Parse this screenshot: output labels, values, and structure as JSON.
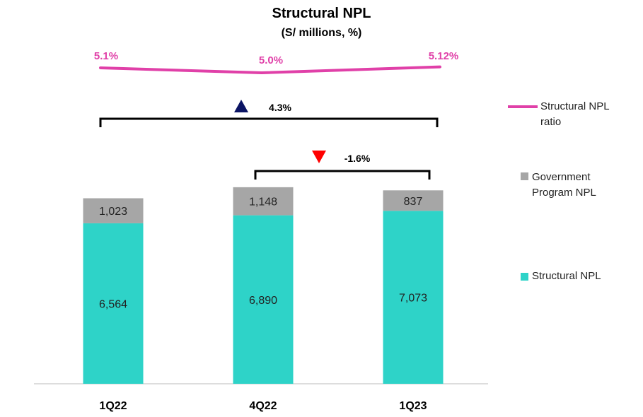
{
  "chart_data": {
    "type": "bar",
    "title": "Structural NPL",
    "subtitle": "(S/ millions, %)",
    "categories": [
      "1Q22",
      "4Q22",
      "1Q23"
    ],
    "series": [
      {
        "name": "Structural NPL",
        "type": "stacked-bar",
        "color": "#2ED3C8",
        "values": [
          6564,
          6890,
          7073
        ],
        "labels": [
          "6,564",
          "6,890",
          "7,073"
        ]
      },
      {
        "name": "Government Program NPL",
        "type": "stacked-bar",
        "color": "#A6A6A6",
        "values": [
          1023,
          1148,
          837
        ],
        "labels": [
          "1,023",
          "1,148",
          "837"
        ]
      },
      {
        "name": "Structural NPL ratio",
        "type": "line",
        "color": "#E040A8",
        "values": [
          5.1,
          5.0,
          5.12
        ],
        "labels": [
          "5.1%",
          "5.0%",
          "5.12%"
        ]
      }
    ],
    "annotations": [
      {
        "from": "1Q22",
        "to": "1Q23",
        "label": "4.3%",
        "direction": "up",
        "color": "#0B1464"
      },
      {
        "from": "4Q22",
        "to": "1Q23",
        "label": "-1.6%",
        "direction": "down",
        "color": "#FF0000"
      }
    ],
    "legend": {
      "placement": "right",
      "entries": [
        "Structural NPL ratio",
        "Government Program NPL",
        "Structural NPL"
      ]
    },
    "xlabel": "",
    "ylabel": "",
    "grid": false
  }
}
